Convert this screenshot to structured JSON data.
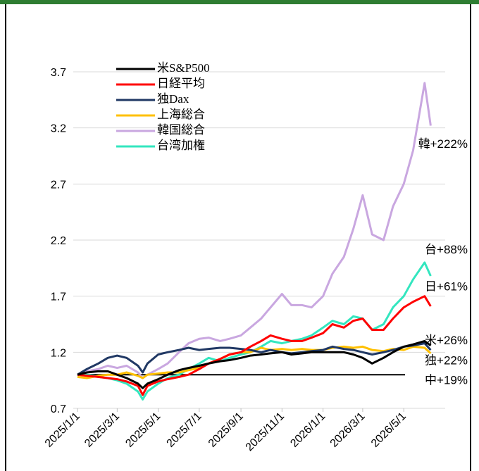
{
  "chart_data": {
    "type": "line",
    "x": [
      "2025/1/1",
      "2025/1/15",
      "2025/2/1",
      "2025/2/15",
      "2025/3/1",
      "2025/3/15",
      "2025/4/1",
      "2025/4/8",
      "2025/4/15",
      "2025/5/1",
      "2025/5/15",
      "2025/6/1",
      "2025/6/15",
      "2025/7/1",
      "2025/7/15",
      "2025/8/1",
      "2025/8/15",
      "2025/9/1",
      "2025/9/15",
      "2025/10/1",
      "2025/10/15",
      "2025/11/1",
      "2025/11/15",
      "2025/12/1",
      "2025/12/15",
      "2026/1/1",
      "2026/1/15",
      "2026/2/1",
      "2026/2/15",
      "2026/3/1",
      "2026/3/15",
      "2026/4/1",
      "2026/4/15",
      "2026/5/1",
      "2026/5/15",
      "2026/6/1",
      "2026/6/10"
    ],
    "series": [
      {
        "name": "米S&P500",
        "color": "#000000",
        "values": [
          1.0,
          1.02,
          1.03,
          1.03,
          1.0,
          0.97,
          0.92,
          0.88,
          0.92,
          0.96,
          1.0,
          1.04,
          1.06,
          1.08,
          1.1,
          1.12,
          1.13,
          1.15,
          1.17,
          1.18,
          1.19,
          1.2,
          1.18,
          1.19,
          1.2,
          1.2,
          1.2,
          1.2,
          1.18,
          1.15,
          1.1,
          1.15,
          1.2,
          1.25,
          1.27,
          1.3,
          1.26
        ]
      },
      {
        "name": "日経平均",
        "color": "#ff0000",
        "values": [
          1.0,
          0.99,
          0.98,
          0.97,
          0.96,
          0.94,
          0.9,
          0.82,
          0.9,
          0.94,
          0.96,
          0.98,
          1.0,
          1.05,
          1.1,
          1.14,
          1.18,
          1.2,
          1.25,
          1.3,
          1.35,
          1.32,
          1.3,
          1.3,
          1.33,
          1.37,
          1.45,
          1.42,
          1.48,
          1.5,
          1.4,
          1.4,
          1.5,
          1.6,
          1.65,
          1.7,
          1.61
        ]
      },
      {
        "name": "独Dax",
        "color": "#203864",
        "values": [
          1.0,
          1.05,
          1.1,
          1.15,
          1.17,
          1.15,
          1.08,
          1.02,
          1.1,
          1.18,
          1.2,
          1.22,
          1.24,
          1.22,
          1.23,
          1.24,
          1.24,
          1.23,
          1.22,
          1.2,
          1.22,
          1.2,
          1.19,
          1.2,
          1.21,
          1.22,
          1.25,
          1.23,
          1.22,
          1.2,
          1.18,
          1.2,
          1.22,
          1.25,
          1.26,
          1.28,
          1.22
        ]
      },
      {
        "name": "上海総合",
        "color": "#ffc000",
        "values": [
          0.98,
          0.97,
          0.99,
          1.0,
          1.0,
          1.02,
          0.99,
          0.97,
          1.0,
          1.01,
          1.02,
          1.02,
          1.04,
          1.06,
          1.1,
          1.14,
          1.18,
          1.2,
          1.2,
          1.24,
          1.22,
          1.23,
          1.22,
          1.23,
          1.22,
          1.22,
          1.24,
          1.25,
          1.24,
          1.25,
          1.22,
          1.21,
          1.23,
          1.22,
          1.25,
          1.24,
          1.19
        ]
      },
      {
        "name": "韓国総合",
        "color": "#c9a7e0",
        "values": [
          1.0,
          1.03,
          1.05,
          1.08,
          1.06,
          1.08,
          1.02,
          0.97,
          1.0,
          1.05,
          1.1,
          1.2,
          1.28,
          1.32,
          1.33,
          1.3,
          1.32,
          1.35,
          1.42,
          1.5,
          1.6,
          1.72,
          1.62,
          1.62,
          1.6,
          1.7,
          1.9,
          2.05,
          2.3,
          2.6,
          2.25,
          2.2,
          2.5,
          2.7,
          3.0,
          3.6,
          3.22
        ]
      },
      {
        "name": "台湾加権",
        "color": "#33e6bf",
        "values": [
          1.0,
          1.0,
          0.98,
          0.97,
          0.95,
          0.92,
          0.85,
          0.78,
          0.85,
          0.92,
          0.97,
          1.0,
          1.05,
          1.1,
          1.15,
          1.12,
          1.15,
          1.18,
          1.2,
          1.25,
          1.3,
          1.28,
          1.3,
          1.32,
          1.35,
          1.42,
          1.48,
          1.45,
          1.52,
          1.5,
          1.4,
          1.45,
          1.6,
          1.7,
          1.85,
          2.0,
          1.88
        ]
      }
    ],
    "hline": 1.0,
    "ylim": [
      0.7,
      3.7
    ],
    "yticks": [
      0.7,
      1.2,
      1.7,
      2.2,
      2.7,
      3.2,
      3.7
    ],
    "xticks": [
      "2025/1/1",
      "2025/3/1",
      "2025/5/1",
      "2025/7/1",
      "2025/9/1",
      "2025/11/1",
      "2026/1/1",
      "2026/3/1",
      "2026/5/1"
    ],
    "grid": true,
    "annotations": [
      {
        "text": "韓+222%",
        "y": 3.05
      },
      {
        "text": "台+88%",
        "y": 2.11
      },
      {
        "text": "日+61%",
        "y": 1.78
      },
      {
        "text": "米+26%",
        "y": 1.3
      },
      {
        "text": "独+22%",
        "y": 1.12
      },
      {
        "text": "中+19%",
        "y": 0.945
      }
    ]
  }
}
